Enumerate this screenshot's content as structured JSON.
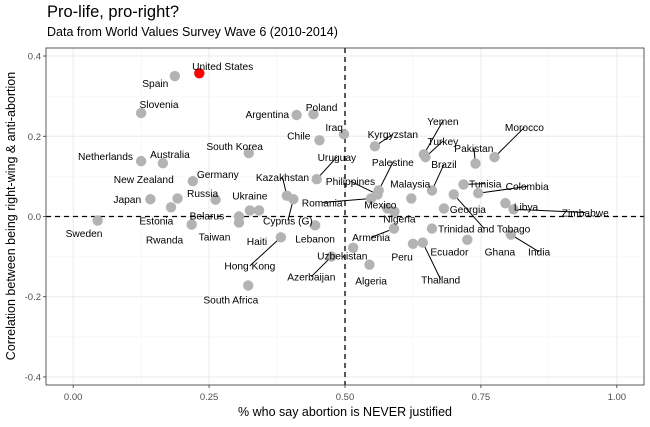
{
  "chart_data": {
    "type": "scatter",
    "title": "Pro-life, pro-right?",
    "subtitle": "Data from World Values Survey Wave 6 (2010-2014)",
    "xlabel": "% who say abortion is NEVER justified",
    "ylabel": "Correlation between being right-wing & anti-abortion",
    "xlim": [
      -0.05,
      1.05
    ],
    "ylim": [
      -0.42,
      0.42
    ],
    "xticks": [
      0,
      0.25,
      0.5,
      0.75,
      1
    ],
    "xtick_labels": [
      "0.00",
      "0.25",
      "0.50",
      "0.75",
      "1.00"
    ],
    "yticks": [
      -0.4,
      -0.2,
      0,
      0.2,
      0.4
    ],
    "ytick_labels": [
      "-0.4",
      "-0.2",
      "0.0",
      "0.2",
      "0.4"
    ],
    "reference_lines": {
      "x": 0.5,
      "y": 0
    },
    "grid": true,
    "colors": {
      "point": "#b3b3b3",
      "highlight": "#ff0000",
      "panel_border": "#333333",
      "grid_major": "#ebebeb",
      "grid_minor": "#f5f5f5"
    },
    "points": [
      {
        "x": 0.232,
        "y": 0.357,
        "label": "United States",
        "highlight": true
      },
      {
        "x": 0.187,
        "y": 0.35,
        "label": "Spain"
      },
      {
        "x": 0.125,
        "y": 0.258,
        "label": "Slovenia"
      },
      {
        "x": 0.045,
        "y": -0.01,
        "label": "Sweden"
      },
      {
        "x": 0.125,
        "y": 0.138,
        "label": "Netherlands"
      },
      {
        "x": 0.165,
        "y": 0.133,
        "label": "Australia"
      },
      {
        "x": 0.192,
        "y": 0.045,
        "label": "New Zealand"
      },
      {
        "x": 0.142,
        "y": 0.043,
        "label": "Japan"
      },
      {
        "x": 0.18,
        "y": 0.023,
        "label": "Estonia"
      },
      {
        "x": 0.218,
        "y": -0.02,
        "label": "Rwanda"
      },
      {
        "x": 0.22,
        "y": 0.088,
        "label": "Germany"
      },
      {
        "x": 0.262,
        "y": 0.042,
        "label": "Russia"
      },
      {
        "x": 0.305,
        "y": 0.0,
        "label": "Belarus"
      },
      {
        "x": 0.305,
        "y": -0.015,
        "label": "Taiwan"
      },
      {
        "x": 0.325,
        "y": 0.015,
        "label": "Ukraine"
      },
      {
        "x": 0.342,
        "y": 0.015,
        "label": "Haiti"
      },
      {
        "x": 0.382,
        "y": -0.052,
        "label": "Hong Kong"
      },
      {
        "x": 0.322,
        "y": -0.172,
        "label": "South Africa"
      },
      {
        "x": 0.323,
        "y": 0.158,
        "label": "South Korea"
      },
      {
        "x": 0.411,
        "y": 0.253,
        "label": "Argentina"
      },
      {
        "x": 0.442,
        "y": 0.255,
        "label": "Poland"
      },
      {
        "x": 0.453,
        "y": 0.19,
        "label": "Chile"
      },
      {
        "x": 0.498,
        "y": 0.205,
        "label": "Iraq"
      },
      {
        "x": 0.448,
        "y": 0.093,
        "label": "Uruguay"
      },
      {
        "x": 0.393,
        "y": 0.052,
        "label": "Kazakhstan"
      },
      {
        "x": 0.405,
        "y": 0.043,
        "label": "Cyprus (G)"
      },
      {
        "x": 0.445,
        "y": -0.022,
        "label": "Lebanon"
      },
      {
        "x": 0.548,
        "y": 0.045,
        "label": "Romania"
      },
      {
        "x": 0.515,
        "y": -0.078,
        "label": "Uzbekistan"
      },
      {
        "x": 0.475,
        "y": -0.1,
        "label": "Azerbaijan"
      },
      {
        "x": 0.555,
        "y": 0.175,
        "label": "Kyrgyzstan"
      },
      {
        "x": 0.56,
        "y": 0.055,
        "label": "Philippines"
      },
      {
        "x": 0.545,
        "y": -0.12,
        "label": "Algeria"
      },
      {
        "x": 0.562,
        "y": 0.065,
        "label": "Palestine"
      },
      {
        "x": 0.578,
        "y": 0.02,
        "label": "Mexico"
      },
      {
        "x": 0.591,
        "y": 0.012,
        "label": "Nigeria"
      },
      {
        "x": 0.59,
        "y": -0.03,
        "label": "Armenia"
      },
      {
        "x": 0.625,
        "y": -0.068,
        "label": "Peru"
      },
      {
        "x": 0.622,
        "y": 0.045,
        "label": "Malaysia"
      },
      {
        "x": 0.66,
        "y": 0.065,
        "label": "Brazil"
      },
      {
        "x": 0.643,
        "y": -0.065,
        "label": "Thailand"
      },
      {
        "x": 0.645,
        "y": 0.155,
        "label": "Yemen"
      },
      {
        "x": 0.648,
        "y": 0.148,
        "label": "Turkey"
      },
      {
        "x": 0.66,
        "y": -0.03,
        "label": "Ecuador"
      },
      {
        "x": 0.682,
        "y": 0.02,
        "label": "Georgia"
      },
      {
        "x": 0.7,
        "y": 0.055,
        "label": "Trinidad and Tobago"
      },
      {
        "x": 0.718,
        "y": 0.08,
        "label": "Tunisia"
      },
      {
        "x": 0.74,
        "y": 0.132,
        "label": "Pakistan"
      },
      {
        "x": 0.745,
        "y": 0.058,
        "label": "Colombia"
      },
      {
        "x": 0.775,
        "y": 0.148,
        "label": "Morocco"
      },
      {
        "x": 0.795,
        "y": 0.033,
        "label": "Libya"
      },
      {
        "x": 0.81,
        "y": 0.018,
        "label": "Zimbabwe"
      },
      {
        "x": 0.725,
        "y": -0.058,
        "label": "Ghana"
      },
      {
        "x": 0.805,
        "y": -0.045,
        "label": "India"
      }
    ],
    "labels": [
      {
        "country": "United States",
        "x": 0.275,
        "y": 0.375,
        "anchor": "middle",
        "leader": false
      },
      {
        "country": "Spain",
        "x": 0.175,
        "y": 0.332,
        "anchor": "end",
        "leader": false
      },
      {
        "country": "Slovenia",
        "x": 0.158,
        "y": 0.28,
        "anchor": "middle",
        "leader": false
      },
      {
        "country": "Sweden",
        "x": 0.02,
        "y": -0.042,
        "anchor": "middle",
        "leader": false
      },
      {
        "country": "Netherlands",
        "x": 0.11,
        "y": 0.15,
        "anchor": "end",
        "leader": false
      },
      {
        "country": "Australia",
        "x": 0.178,
        "y": 0.155,
        "anchor": "middle",
        "leader": false
      },
      {
        "country": "New Zealand",
        "x": 0.185,
        "y": 0.093,
        "anchor": "end",
        "leader": false
      },
      {
        "country": "Japan",
        "x": 0.125,
        "y": 0.043,
        "anchor": "end",
        "leader": false
      },
      {
        "country": "Estonia",
        "x": 0.153,
        "y": -0.01,
        "anchor": "middle",
        "leader": false
      },
      {
        "country": "Rwanda",
        "x": 0.168,
        "y": -0.058,
        "anchor": "middle",
        "leader": false
      },
      {
        "country": "Germany",
        "x": 0.266,
        "y": 0.106,
        "anchor": "middle",
        "leader": false
      },
      {
        "country": "Russia",
        "x": 0.238,
        "y": 0.058,
        "anchor": "middle",
        "leader": false
      },
      {
        "country": "Belarus",
        "x": 0.246,
        "y": 0.002,
        "anchor": "middle",
        "leader": false
      },
      {
        "country": "Taiwan",
        "x": 0.26,
        "y": -0.05,
        "anchor": "middle",
        "leader": false
      },
      {
        "country": "Ukraine",
        "x": 0.325,
        "y": 0.052,
        "anchor": "middle",
        "leader": false
      },
      {
        "country": "Haiti",
        "x": 0.338,
        "y": -0.062,
        "anchor": "middle",
        "leader": false
      },
      {
        "country": "Hong Kong",
        "x": 0.325,
        "y": -0.123,
        "anchor": "middle",
        "leader": true
      },
      {
        "country": "South Africa",
        "x": 0.29,
        "y": -0.208,
        "anchor": "middle",
        "leader": false
      },
      {
        "country": "South Korea",
        "x": 0.297,
        "y": 0.175,
        "anchor": "middle",
        "leader": false
      },
      {
        "country": "Argentina",
        "x": 0.357,
        "y": 0.255,
        "anchor": "middle",
        "leader": false
      },
      {
        "country": "Poland",
        "x": 0.457,
        "y": 0.272,
        "anchor": "middle",
        "leader": false
      },
      {
        "country": "Chile",
        "x": 0.415,
        "y": 0.202,
        "anchor": "middle",
        "leader": false
      },
      {
        "country": "Iraq",
        "x": 0.48,
        "y": 0.222,
        "anchor": "middle",
        "leader": false
      },
      {
        "country": "Uruguay",
        "x": 0.485,
        "y": 0.148,
        "anchor": "middle",
        "leader": true
      },
      {
        "country": "Kazakhstan",
        "x": 0.385,
        "y": 0.098,
        "anchor": "middle",
        "leader": true
      },
      {
        "country": "Cyprus (G)",
        "x": 0.395,
        "y": -0.01,
        "anchor": "middle",
        "leader": true
      },
      {
        "country": "Lebanon",
        "x": 0.445,
        "y": -0.055,
        "anchor": "middle",
        "leader": false
      },
      {
        "country": "Romania",
        "x": 0.458,
        "y": 0.035,
        "anchor": "middle",
        "leader": true
      },
      {
        "country": "Uzbekistan",
        "x": 0.495,
        "y": -0.098,
        "anchor": "middle",
        "leader": false
      },
      {
        "country": "Azerbaijan",
        "x": 0.438,
        "y": -0.15,
        "anchor": "middle",
        "leader": true
      },
      {
        "country": "Kyrgyzstan",
        "x": 0.588,
        "y": 0.205,
        "anchor": "middle",
        "leader": true
      },
      {
        "country": "Philippines",
        "x": 0.51,
        "y": 0.088,
        "anchor": "middle",
        "leader": true
      },
      {
        "country": "Algeria",
        "x": 0.548,
        "y": -0.16,
        "anchor": "middle",
        "leader": false
      },
      {
        "country": "Palestine",
        "x": 0.588,
        "y": 0.135,
        "anchor": "middle",
        "leader": true
      },
      {
        "country": "Mexico",
        "x": 0.565,
        "y": 0.03,
        "anchor": "middle",
        "leader": false
      },
      {
        "country": "Nigeria",
        "x": 0.6,
        "y": -0.005,
        "anchor": "middle",
        "leader": false
      },
      {
        "country": "Armenia",
        "x": 0.548,
        "y": -0.052,
        "anchor": "middle",
        "leader": true
      },
      {
        "country": "Peru",
        "x": 0.605,
        "y": -0.1,
        "anchor": "middle",
        "leader": false
      },
      {
        "country": "Malaysia",
        "x": 0.62,
        "y": 0.082,
        "anchor": "middle",
        "leader": false
      },
      {
        "country": "Brazil",
        "x": 0.682,
        "y": 0.13,
        "anchor": "middle",
        "leader": true
      },
      {
        "country": "Thailand",
        "x": 0.676,
        "y": -0.157,
        "anchor": "middle",
        "leader": true
      },
      {
        "country": "Yemen",
        "x": 0.68,
        "y": 0.238,
        "anchor": "middle",
        "leader": true
      },
      {
        "country": "Turkey",
        "x": 0.68,
        "y": 0.188,
        "anchor": "middle",
        "leader": true
      },
      {
        "country": "Ecuador",
        "x": 0.692,
        "y": -0.088,
        "anchor": "middle",
        "leader": false
      },
      {
        "country": "Georgia",
        "x": 0.726,
        "y": 0.018,
        "anchor": "middle",
        "leader": false
      },
      {
        "country": "Trinidad and Tobago",
        "x": 0.756,
        "y": -0.03,
        "anchor": "middle",
        "leader": true
      },
      {
        "country": "Tunisia",
        "x": 0.758,
        "y": 0.082,
        "anchor": "middle",
        "leader": true
      },
      {
        "country": "Pakistan",
        "x": 0.737,
        "y": 0.17,
        "anchor": "middle",
        "leader": true
      },
      {
        "country": "Colombia",
        "x": 0.835,
        "y": 0.075,
        "anchor": "middle",
        "leader": true
      },
      {
        "country": "Morocco",
        "x": 0.83,
        "y": 0.222,
        "anchor": "middle",
        "leader": true
      },
      {
        "country": "Libya",
        "x": 0.833,
        "y": 0.025,
        "anchor": "middle",
        "leader": false
      },
      {
        "country": "Zimbabwe",
        "x": 0.942,
        "y": 0.01,
        "anchor": "middle",
        "leader": true
      },
      {
        "country": "Ghana",
        "x": 0.785,
        "y": -0.088,
        "anchor": "middle",
        "leader": false
      },
      {
        "country": "India",
        "x": 0.857,
        "y": -0.088,
        "anchor": "middle",
        "leader": true
      }
    ]
  }
}
